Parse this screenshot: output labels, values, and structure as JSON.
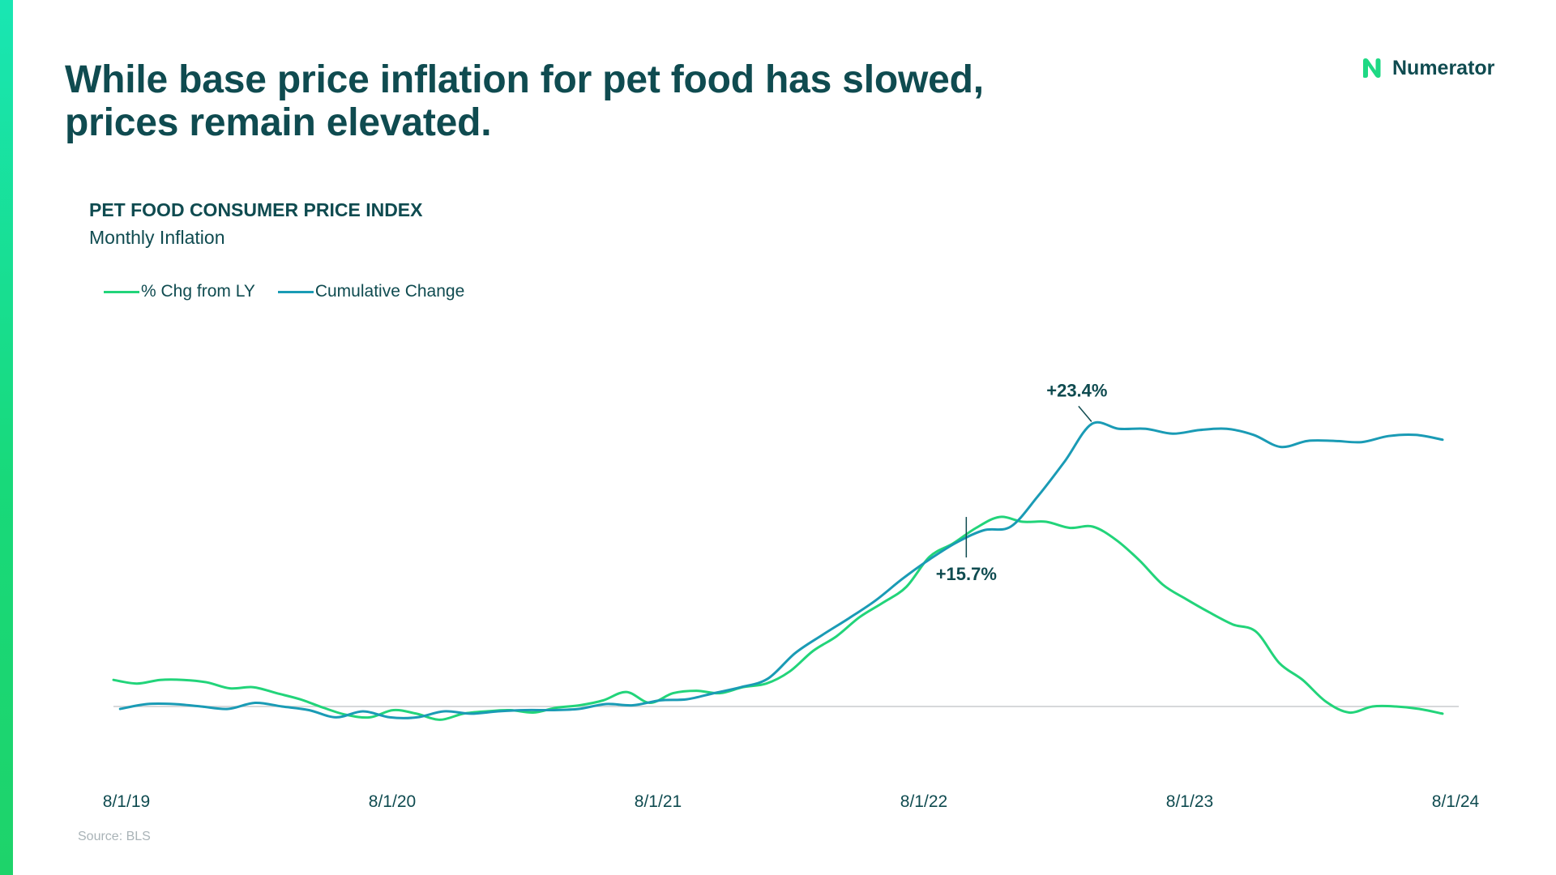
{
  "slide": {
    "headline_line1": "While base price inflation for pet food has slowed,",
    "headline_line2": "prices remain elevated.",
    "brand": "Numerator",
    "source": "Source: BLS"
  },
  "colors": {
    "accent_green": "#1ed984",
    "line_green": "#22d47a",
    "line_teal": "#1a9bb5",
    "text_dark": "#0f4b50",
    "zero_line": "#c8ccce"
  },
  "chart_data": {
    "type": "line",
    "title": "PET FOOD CONSUMER PRICE INDEX",
    "subtitle": "Monthly Inflation",
    "xlabel": "",
    "ylabel": "",
    "x_tick_labels": [
      "8/1/19",
      "8/1/20",
      "8/1/21",
      "8/1/22",
      "8/1/23",
      "8/1/24"
    ],
    "x_range_months": [
      0,
      60
    ],
    "ylim": [
      -3.5,
      26
    ],
    "zero_line": true,
    "legend_position": "top-left",
    "series": [
      {
        "name": "% Chg from LY",
        "color": "#22d47a",
        "values": [
          2.2,
          1.9,
          2.2,
          2.2,
          2.0,
          1.5,
          1.6,
          1.1,
          0.6,
          -0.1,
          -0.7,
          -0.9,
          -0.3,
          -0.6,
          -1.1,
          -0.6,
          -0.4,
          -0.3,
          -0.5,
          -0.1,
          0.1,
          0.5,
          1.2,
          0.3,
          1.1,
          1.3,
          1.1,
          1.6,
          1.9,
          2.9,
          4.6,
          5.8,
          7.4,
          8.6,
          9.9,
          12.4,
          13.5,
          14.8,
          15.7,
          15.3,
          15.3,
          14.8,
          14.9,
          13.8,
          12.1,
          10.1,
          8.9,
          7.8,
          6.8,
          6.2,
          3.6,
          2.2,
          0.4,
          -0.5,
          0.0,
          0.0,
          -0.2,
          -0.6
        ]
      },
      {
        "name": "Cumulative Change",
        "color": "#1a9bb5",
        "values": [
          -0.2,
          0.2,
          0.2,
          0.0,
          -0.2,
          0.3,
          0.0,
          -0.3,
          -0.9,
          -0.4,
          -0.9,
          -0.9,
          -0.4,
          -0.6,
          -0.4,
          -0.3,
          -0.3,
          -0.2,
          0.2,
          0.1,
          0.5,
          0.6,
          1.1,
          1.6,
          2.3,
          4.4,
          5.9,
          7.3,
          8.8,
          10.6,
          12.2,
          13.6,
          14.6,
          14.9,
          17.4,
          20.3,
          23.4,
          23.0,
          23.0,
          22.6,
          22.9,
          23.0,
          22.5,
          21.5,
          22.0,
          22.0,
          21.9,
          22.4,
          22.5,
          22.1
        ]
      }
    ],
    "annotations": [
      {
        "series": "% Chg from LY",
        "label": "+15.7%",
        "month": 38.5,
        "value": 15.7
      },
      {
        "series": "Cumulative Change",
        "label": "+23.4%",
        "month": 44.3,
        "value": 23.4
      }
    ]
  }
}
